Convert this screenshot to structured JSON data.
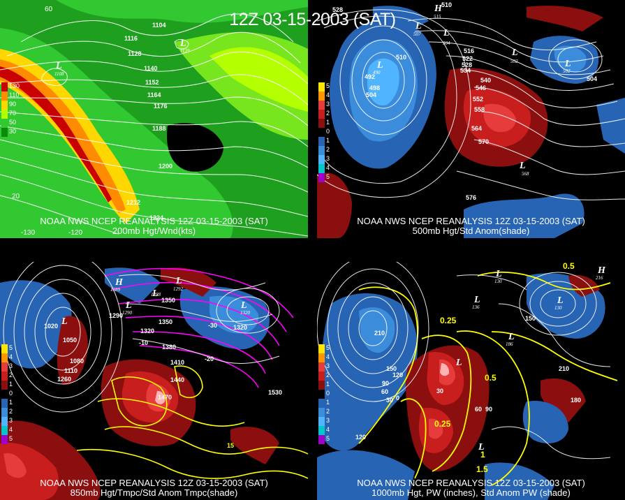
{
  "title": "12Z 03-15-2003 (SAT)",
  "panels": [
    {
      "caption_line1": "NOAA NWS NCEP REANALYSIS 12Z 03-15-2003 (SAT)",
      "caption_line2": "200mb Hgt/Wnd(kts)",
      "legend": [
        {
          "label": "130",
          "color": "#c80000"
        },
        {
          "label": "110",
          "color": "#ff8c00"
        },
        {
          "label": "90",
          "color": "#ffd700"
        },
        {
          "label": "70",
          "color": "#b4ff00"
        },
        {
          "label": "50",
          "color": "#32c832"
        },
        {
          "label": "30",
          "color": "#0a8c0a"
        }
      ],
      "ticks": [
        "60",
        "-130",
        "-120",
        "20"
      ],
      "contours": [
        "1104",
        "1116",
        "1128",
        "1140",
        "1152",
        "1164",
        "1176",
        "1188",
        "1200",
        "1212",
        "1224"
      ],
      "lows": [
        {
          "symbol": "L",
          "value": "1108"
        },
        {
          "symbol": "L",
          "value": "1139"
        }
      ]
    },
    {
      "caption_line1": "NOAA NWS NCEP REANALYSIS 12Z 03-15-2003 (SAT)",
      "caption_line2": "500mb Hgt/Std Anom(shade)",
      "legend": [
        {
          "label": "5",
          "color": "#ffe600"
        },
        {
          "label": "4",
          "color": "#ff9600"
        },
        {
          "label": "3",
          "color": "#e63c3c"
        },
        {
          "label": "2",
          "color": "#c81e1e"
        },
        {
          "label": "1",
          "color": "#8c0f0f"
        },
        {
          "label": "0",
          "color": "#000000"
        },
        {
          "label": "1",
          "color": "#2864b4"
        },
        {
          "label": "2",
          "color": "#3c8cdc"
        },
        {
          "label": "3",
          "color": "#50b4ff"
        },
        {
          "label": "4",
          "color": "#00c8c8"
        },
        {
          "label": "5",
          "color": "#a000c8"
        }
      ],
      "contours": [
        "528",
        "510",
        "516",
        "522",
        "528",
        "534",
        "540",
        "546",
        "552",
        "558",
        "564",
        "570",
        "576",
        "504",
        "498",
        "492",
        "510",
        "504"
      ],
      "lows": [
        {
          "symbol": "L",
          "value": "490"
        },
        {
          "symbol": "L",
          "value": "507"
        },
        {
          "symbol": "L",
          "value": "504"
        },
        {
          "symbol": "L",
          "value": "502"
        },
        {
          "symbol": "L",
          "value": "502"
        },
        {
          "symbol": "L",
          "value": "568"
        },
        {
          "symbol": "H",
          "value": "515"
        }
      ]
    },
    {
      "caption_line1": "NOAA NWS NCEP REANALYSIS 12Z 03-15-2003 (SAT)",
      "caption_line2": "850mb Hgt/Tmpc/Std Anom Tmpc(shade)",
      "legend": [
        {
          "label": "5",
          "color": "#ffe600"
        },
        {
          "label": "4",
          "color": "#ff9600"
        },
        {
          "label": "3",
          "color": "#e63c3c"
        },
        {
          "label": "2",
          "color": "#c81e1e"
        },
        {
          "label": "1",
          "color": "#8c0f0f"
        },
        {
          "label": "0",
          "color": "#000000"
        },
        {
          "label": "1",
          "color": "#2864b4"
        },
        {
          "label": "2",
          "color": "#3c8cdc"
        },
        {
          "label": "3",
          "color": "#50b4ff"
        },
        {
          "label": "4",
          "color": "#00c8c8"
        },
        {
          "label": "5",
          "color": "#a000c8"
        }
      ],
      "contours": [
        "1020",
        "1050",
        "1080",
        "1110",
        "1260",
        "1290",
        "1320",
        "1350",
        "1380",
        "1410",
        "1440",
        "1470",
        "1530",
        "1350",
        "1320",
        "-10",
        "-20",
        "-30",
        "15"
      ],
      "lows": [
        {
          "symbol": "L",
          "value": ""
        },
        {
          "symbol": "H",
          "value": "1389"
        },
        {
          "symbol": "L",
          "value": "1288"
        },
        {
          "symbol": "L",
          "value": "1290"
        },
        {
          "symbol": "L",
          "value": "1292"
        },
        {
          "symbol": "L",
          "value": "1320"
        }
      ]
    },
    {
      "caption_line1": "NOAA NWS NCEP REANALYSIS 12Z 03-15-2003 (SAT)",
      "caption_line2": "1000mb Hgt, PW (inches), Std Anom PW (shade)",
      "legend": [
        {
          "label": "5",
          "color": "#ffe600"
        },
        {
          "label": "4",
          "color": "#ff9600"
        },
        {
          "label": "3",
          "color": "#e63c3c"
        },
        {
          "label": "2",
          "color": "#c81e1e"
        },
        {
          "label": "1",
          "color": "#8c0f0f"
        },
        {
          "label": "0",
          "color": "#000000"
        },
        {
          "label": "1",
          "color": "#2864b4"
        },
        {
          "label": "2",
          "color": "#3c8cdc"
        },
        {
          "label": "3",
          "color": "#50b4ff"
        },
        {
          "label": "4",
          "color": "#00c8c8"
        },
        {
          "label": "5",
          "color": "#a000c8"
        }
      ],
      "contours": [
        "210",
        "150",
        "120",
        "90",
        "60",
        "30",
        "0",
        "180",
        "210",
        "120",
        "150",
        "30",
        "60",
        "90",
        "0.5",
        "0.25",
        "0.5",
        "0.25",
        "1",
        "1.5"
      ],
      "lows": [
        {
          "symbol": "L",
          "value": "130"
        },
        {
          "symbol": "L",
          "value": "136"
        },
        {
          "symbol": "L",
          "value": "130"
        },
        {
          "symbol": "H",
          "value": "216"
        },
        {
          "symbol": "L",
          "value": "186"
        },
        {
          "symbol": "L",
          "value": ""
        },
        {
          "symbol": "L",
          "value": ""
        }
      ]
    }
  ]
}
